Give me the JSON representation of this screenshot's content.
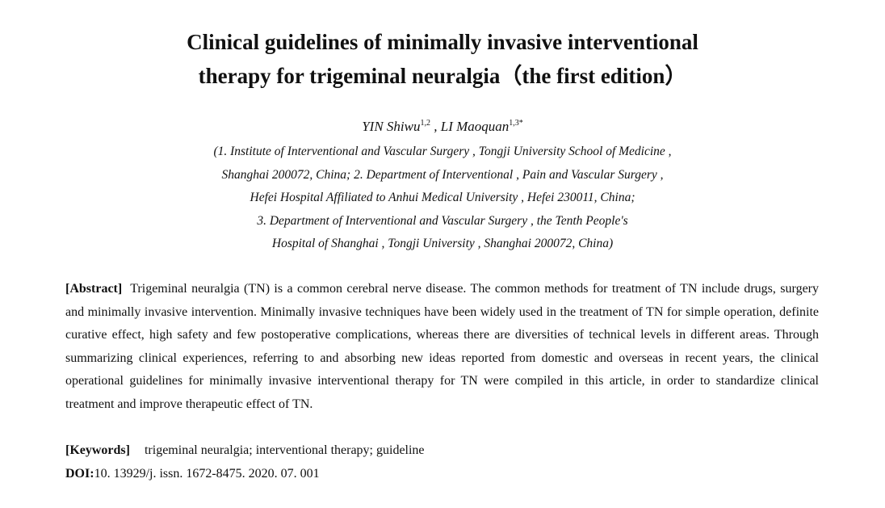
{
  "title": {
    "line1": "Clinical guidelines of minimally invasive interventional",
    "line2": "therapy for trigeminal neuralgia（the first edition）"
  },
  "authors": {
    "author1_name": "YIN Shiwu",
    "author1_sup": "1,2",
    "separator": " , ",
    "author2_name": "LI Maoquan",
    "author2_sup": "1,3*"
  },
  "affiliations": [
    "(1. Institute of Interventional and Vascular Surgery , Tongji University School of Medicine ,",
    "Shanghai 200072, China; 2. Department of Interventional , Pain and Vascular Surgery ,",
    "Hefei Hospital Affiliated to Anhui Medical University , Hefei 230011, China;",
    "3. Department of Interventional and Vascular Surgery , the Tenth People's",
    "Hospital of Shanghai , Tongji University , Shanghai 200072, China)"
  ],
  "abstract": {
    "label": "[Abstract]",
    "text": "Trigeminal neuralgia (TN) is a common cerebral nerve disease. The common methods for treatment of TN include drugs, surgery and minimally invasive intervention. Minimally invasive techniques have been widely used in the treatment of TN for simple operation, definite curative effect, high safety and few postoperative complications, whereas there are diversities of technical levels in different areas. Through summarizing clinical experiences, referring to and absorbing new ideas reported from domestic and overseas in recent years, the clinical operational guidelines for minimally invasive interventional therapy for TN were compiled in this article, in order to standardize clinical treatment and improve therapeutic effect of TN."
  },
  "keywords": {
    "label": "[Keywords]",
    "text": "trigeminal neuralgia; interventional therapy; guideline"
  },
  "doi": {
    "label": "DOI:",
    "value": "10. 13929/j. issn. 1672-8475. 2020. 07. 001"
  }
}
